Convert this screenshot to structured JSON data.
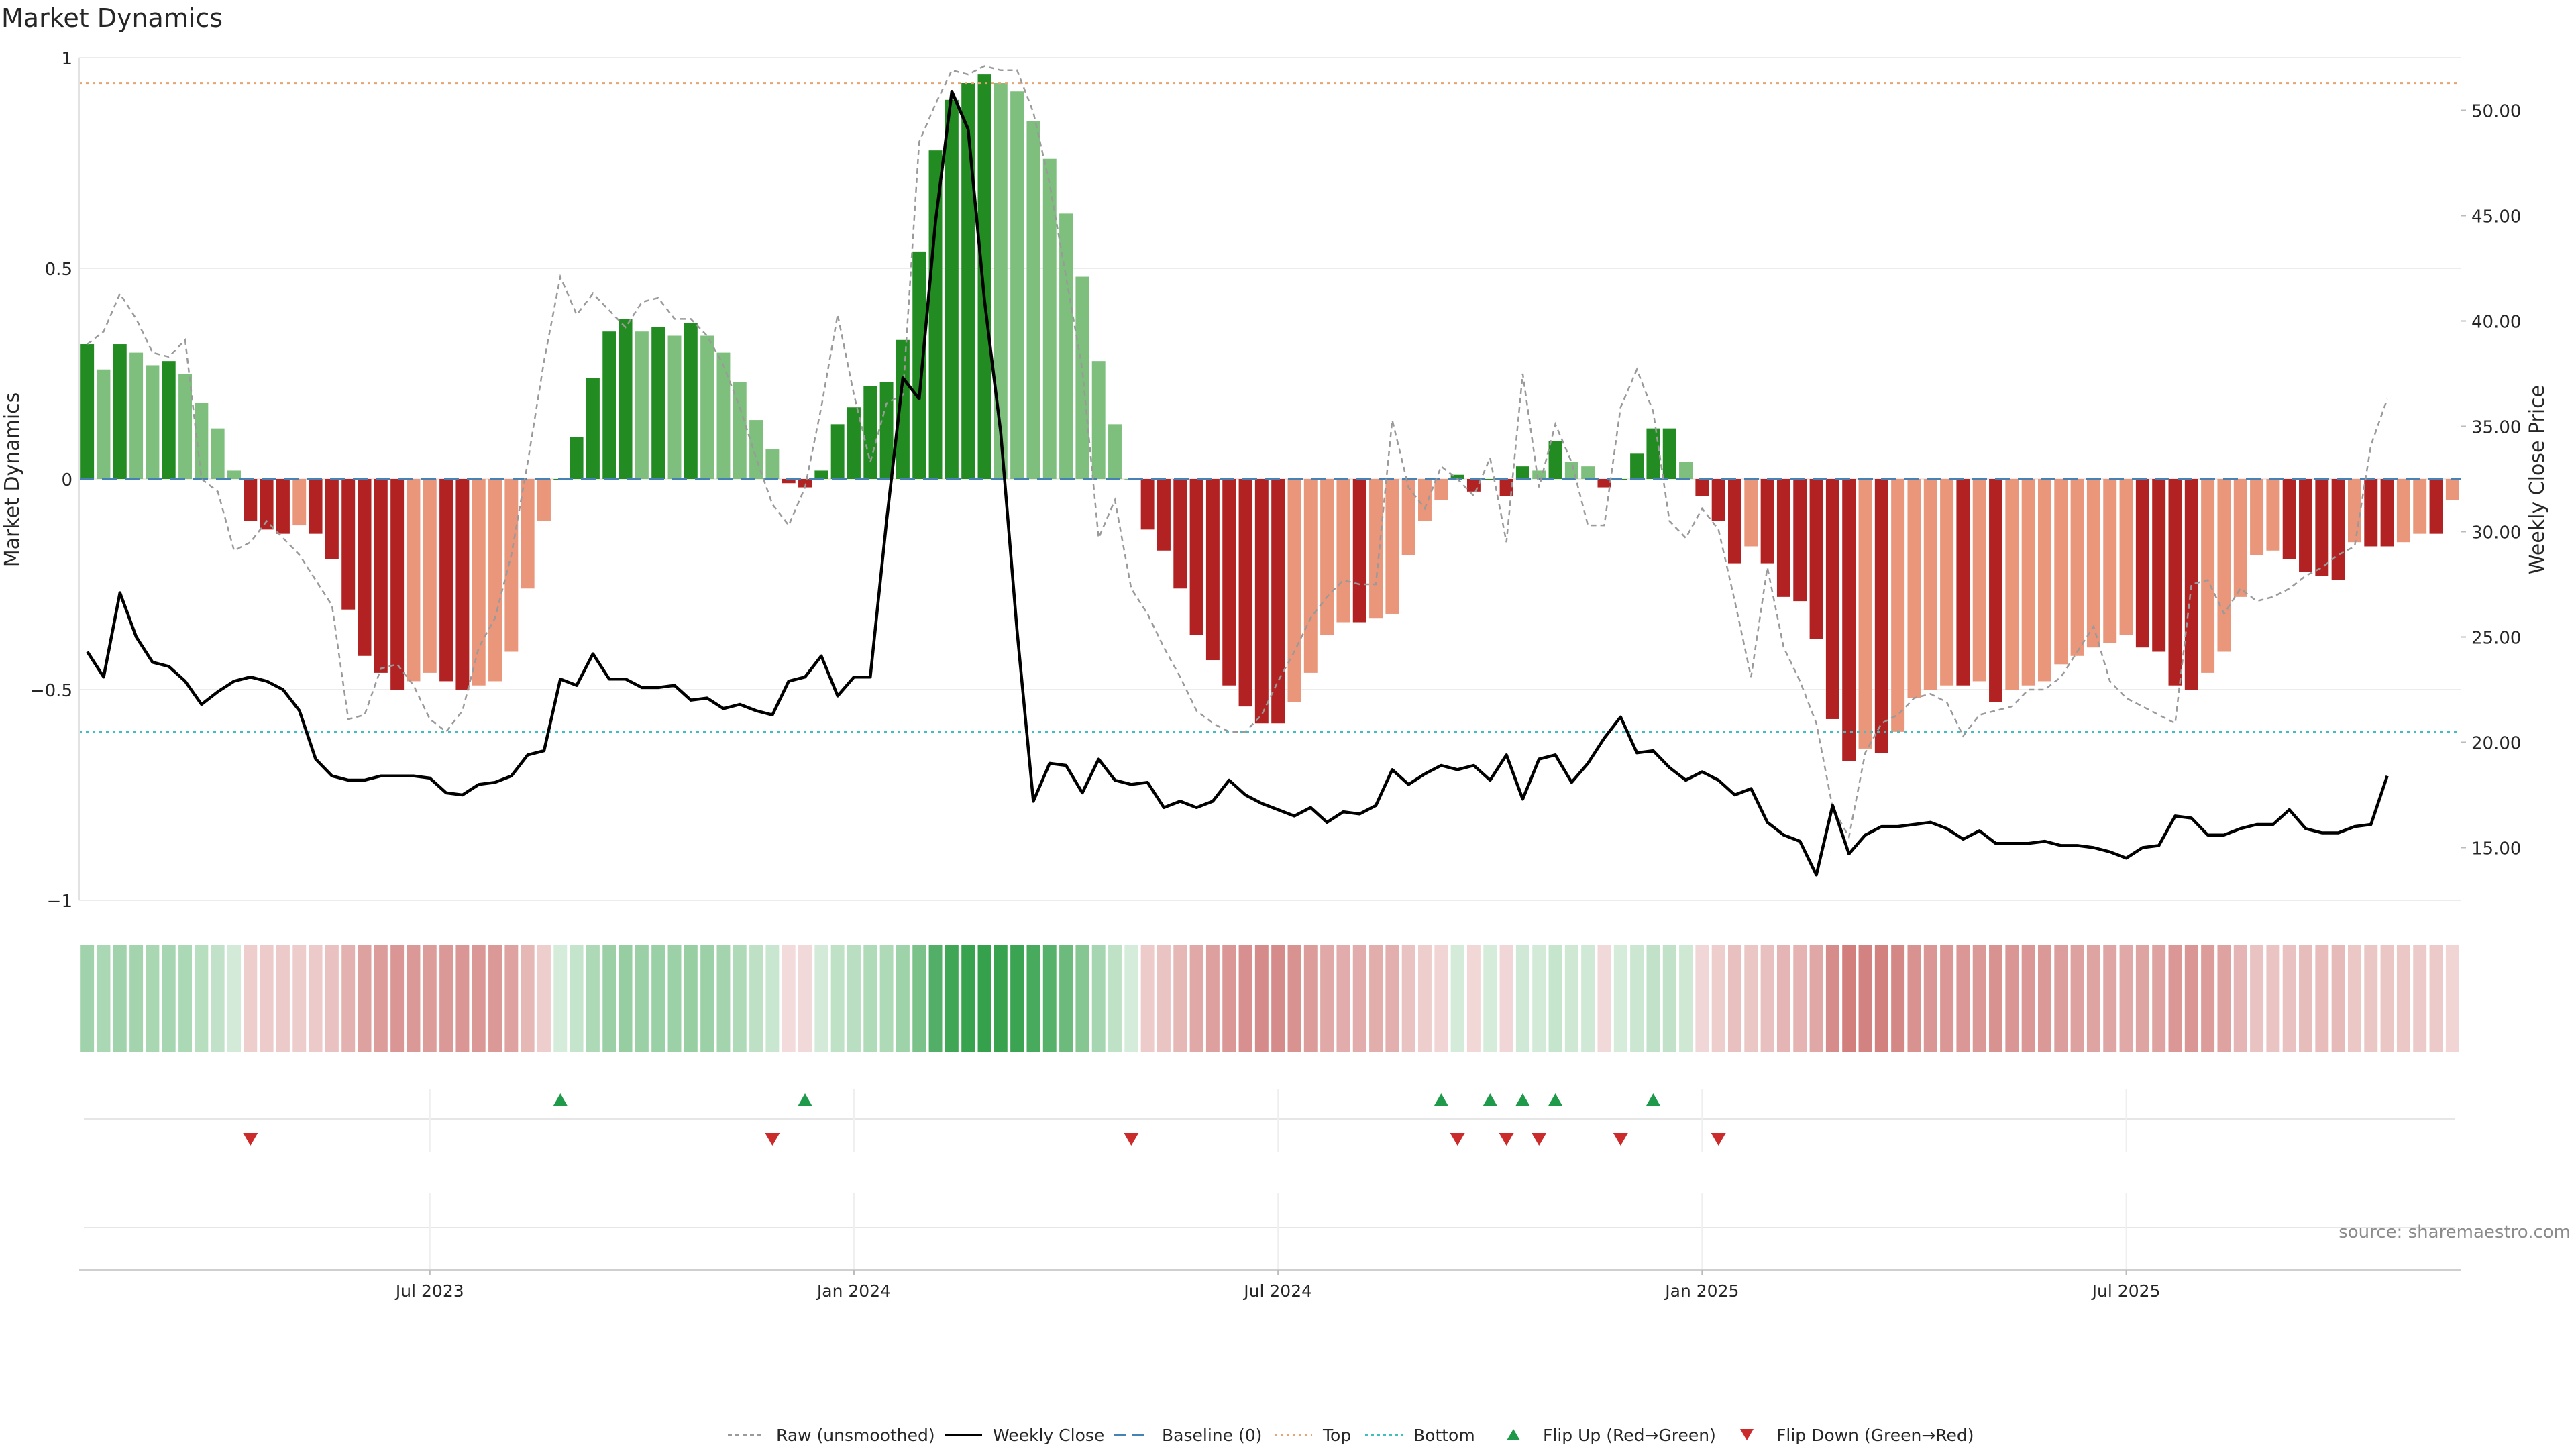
{
  "chart_data": {
    "type": "bar",
    "title": "Market Dynamics",
    "ylabel_left": "Market Dynamics",
    "ylabel_right": "Weekly Close Price",
    "ylim_left": [
      -1.0,
      1.0
    ],
    "ylim_right": [
      12.5,
      52.5
    ],
    "yticks_left": [
      {
        "v": 1,
        "label": "1"
      },
      {
        "v": 0.5,
        "label": "0.5"
      },
      {
        "v": 0,
        "label": "0"
      },
      {
        "v": -0.5,
        "label": "−0.5"
      },
      {
        "v": -1,
        "label": "−1"
      }
    ],
    "yticks_right": [
      {
        "v": 50,
        "label": "50.00"
      },
      {
        "v": 45,
        "label": "45.00"
      },
      {
        "v": 40,
        "label": "40.00"
      },
      {
        "v": 35,
        "label": "35.00"
      },
      {
        "v": 30,
        "label": "30.00"
      },
      {
        "v": 25,
        "label": "25.00"
      },
      {
        "v": 20,
        "label": "20.00"
      },
      {
        "v": 15,
        "label": "15.00"
      }
    ],
    "x_start": "2023-01-02",
    "xticks": [
      {
        "week": 21,
        "label": "Jul 2023"
      },
      {
        "week": 47,
        "label": "Jan 2024"
      },
      {
        "week": 73,
        "label": "Jul 2024"
      },
      {
        "week": 99,
        "label": "Jan 2025"
      },
      {
        "week": 125,
        "label": "Jul 2025"
      }
    ],
    "top_level": 0.94,
    "bottom_level": -0.6,
    "baseline": 0,
    "series": [
      {
        "name": "Smoothed (bars)",
        "values": [
          0.32,
          0.26,
          0.32,
          0.3,
          0.27,
          0.28,
          0.25,
          0.18,
          0.12,
          0.02,
          -0.1,
          -0.12,
          -0.13,
          -0.11,
          -0.13,
          -0.19,
          -0.31,
          -0.42,
          -0.46,
          -0.5,
          -0.48,
          -0.46,
          -0.48,
          -0.5,
          -0.49,
          -0.48,
          -0.41,
          -0.26,
          -0.1,
          0,
          0.1,
          0.24,
          0.35,
          0.38,
          0.35,
          0.36,
          0.34,
          0.37,
          0.34,
          0.3,
          0.23,
          0.14,
          0.07,
          -0.01,
          -0.02,
          0.02,
          0.13,
          0.17,
          0.22,
          0.23,
          0.33,
          0.54,
          0.78,
          0.9,
          0.94,
          0.96,
          0.94,
          0.92,
          0.85,
          0.76,
          0.63,
          0.48,
          0.28,
          0.13,
          0,
          -0.12,
          -0.17,
          -0.26,
          -0.37,
          -0.43,
          -0.49,
          -0.54,
          -0.58,
          -0.58,
          -0.53,
          -0.46,
          -0.37,
          -0.34,
          -0.34,
          -0.33,
          -0.32,
          -0.18,
          -0.1,
          -0.05,
          0.01,
          -0.03,
          0,
          -0.04,
          0.03,
          0.02,
          0.09,
          0.04,
          0.03,
          -0.02,
          0,
          0.06,
          0.12,
          0.12,
          0.04,
          -0.04,
          -0.1,
          -0.2,
          -0.16,
          -0.2,
          -0.28,
          -0.29,
          -0.38,
          -0.57,
          -0.67,
          -0.64,
          -0.65,
          -0.6,
          -0.52,
          -0.5,
          -0.49,
          -0.49,
          -0.48,
          -0.53,
          -0.5,
          -0.49,
          -0.48,
          -0.44,
          -0.42,
          -0.4,
          -0.39,
          -0.37,
          -0.4,
          -0.41,
          -0.49,
          -0.5,
          -0.46,
          -0.41,
          -0.28,
          -0.18,
          -0.17,
          -0.19,
          -0.22,
          -0.23,
          -0.24,
          -0.15,
          -0.16,
          -0.16,
          -0.15,
          -0.13,
          -0.13,
          -0.05
        ]
      },
      {
        "name": "Raw (unsmoothed)",
        "values": [
          0.32,
          0.35,
          0.44,
          0.38,
          0.3,
          0.29,
          0.33,
          0.0,
          -0.03,
          -0.17,
          -0.15,
          -0.1,
          -0.14,
          -0.18,
          -0.24,
          -0.3,
          -0.57,
          -0.56,
          -0.45,
          -0.44,
          -0.49,
          -0.57,
          -0.6,
          -0.55,
          -0.4,
          -0.33,
          -0.18,
          0.04,
          0.28,
          0.48,
          0.39,
          0.44,
          0.4,
          0.36,
          0.42,
          0.43,
          0.38,
          0.38,
          0.34,
          0.27,
          0.17,
          0.05,
          -0.06,
          -0.11,
          -0.02,
          0.17,
          0.39,
          0.2,
          0.04,
          0.18,
          0.2,
          0.8,
          0.89,
          0.97,
          0.96,
          0.98,
          0.97,
          0.97,
          0.87,
          0.7,
          0.48,
          0.26,
          -0.14,
          -0.05,
          -0.26,
          -0.32,
          -0.4,
          -0.47,
          -0.55,
          -0.58,
          -0.6,
          -0.6,
          -0.56,
          -0.48,
          -0.41,
          -0.33,
          -0.28,
          -0.24,
          -0.25,
          -0.25,
          0.14,
          -0.02,
          -0.07,
          0.03,
          0.0,
          -0.04,
          0.05,
          -0.15,
          0.25,
          -0.02,
          0.13,
          0.04,
          -0.11,
          -0.11,
          0.17,
          0.26,
          0.16,
          -0.1,
          -0.14,
          -0.07,
          -0.12,
          -0.29,
          -0.47,
          -0.21,
          -0.4,
          -0.48,
          -0.58,
          -0.78,
          -0.85,
          -0.65,
          -0.58,
          -0.56,
          -0.52,
          -0.51,
          -0.53,
          -0.61,
          -0.56,
          -0.55,
          -0.54,
          -0.5,
          -0.5,
          -0.47,
          -0.41,
          -0.35,
          -0.48,
          -0.52,
          -0.54,
          -0.56,
          -0.58,
          -0.25,
          -0.24,
          -0.32,
          -0.26,
          -0.29,
          -0.28,
          -0.26,
          -0.23,
          -0.21,
          -0.18,
          -0.16,
          0.08,
          0.19
        ]
      },
      {
        "name": "Weekly Close",
        "values": [
          24.3,
          23.1,
          27.1,
          25.0,
          23.8,
          23.6,
          22.9,
          21.8,
          22.4,
          22.9,
          23.1,
          22.9,
          22.5,
          21.5,
          19.2,
          18.4,
          18.2,
          18.2,
          18.4,
          18.4,
          18.4,
          18.3,
          17.6,
          17.5,
          18.0,
          18.1,
          18.4,
          19.4,
          19.6,
          23.0,
          22.7,
          24.2,
          23.0,
          23.0,
          22.6,
          22.6,
          22.7,
          22.0,
          22.1,
          21.6,
          21.8,
          21.5,
          21.3,
          22.9,
          23.1,
          24.1,
          22.2,
          23.1,
          23.1,
          30.5,
          37.3,
          36.3,
          44.7,
          50.9,
          49.1,
          41.0,
          34.7,
          25.3,
          17.2,
          19.0,
          18.9,
          17.6,
          19.2,
          18.2,
          18.0,
          18.1,
          16.9,
          17.2,
          16.9,
          17.2,
          18.2,
          17.5,
          17.1,
          16.8,
          16.5,
          16.9,
          16.2,
          16.7,
          16.6,
          17.0,
          18.7,
          18.0,
          18.5,
          18.9,
          18.7,
          18.9,
          18.2,
          19.4,
          17.3,
          19.2,
          19.4,
          18.1,
          19.0,
          20.2,
          21.2,
          19.5,
          19.6,
          18.8,
          18.2,
          18.6,
          18.2,
          17.5,
          17.8,
          16.2,
          15.6,
          15.3,
          13.7,
          17.0,
          14.7,
          15.6,
          16.0,
          16.0,
          16.1,
          16.2,
          15.9,
          15.4,
          15.8,
          15.2,
          15.2,
          15.2,
          15.3,
          15.1,
          15.1,
          15.0,
          14.8,
          14.5,
          15.0,
          15.1,
          16.5,
          16.4,
          15.6,
          15.6,
          15.9,
          16.1,
          16.1,
          16.8,
          15.9,
          15.7,
          15.7,
          16.0,
          16.1,
          18.4
        ]
      }
    ],
    "flips_up": [
      29,
      44,
      83,
      86,
      88,
      90,
      96
    ],
    "flips_down": [
      10,
      42,
      64,
      84,
      87,
      89,
      94,
      100
    ],
    "legend": {
      "position": "bottom-center",
      "entries": [
        "Raw (unsmoothed)",
        "Weekly Close",
        "Baseline (0)",
        "Top",
        "Bottom",
        "Flip Up (Red→Green)",
        "Flip Down (Green→Red)"
      ]
    },
    "colors": {
      "bar_strong_up": "#228b22",
      "bar_weak_up": "#7ebf7e",
      "bar_strong_down": "#b22222",
      "bar_weak_down": "#e9967a",
      "raw": "#9a9a9a",
      "close": "#000000",
      "baseline": "#4682b4",
      "top": "#e8a46e",
      "bottom": "#3fbfbf",
      "flip_up": "#1e9a4a",
      "flip_down": "#cc2b2b",
      "heat_green": "#2e9e46",
      "heat_red": "#c0504d"
    },
    "source": "source: sharemaestro.com"
  }
}
